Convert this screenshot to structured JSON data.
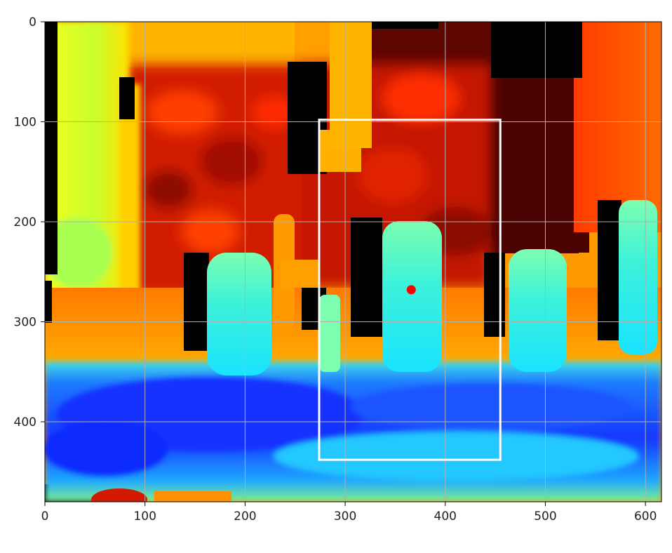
{
  "chart_data": {
    "type": "heatmap",
    "image_kind": "depth map (jet colormap)",
    "colormap": "jet",
    "xlim": [
      0,
      616
    ],
    "ylim": [
      480,
      0
    ],
    "grid": true,
    "x_ticks": [
      0,
      100,
      200,
      300,
      400,
      500,
      600
    ],
    "y_ticks": [
      0,
      100,
      200,
      300,
      400
    ],
    "bounding_box": {
      "x_min": 274,
      "y_min": 98,
      "x_max": 455,
      "y_max": 438,
      "color": "#ffffff"
    },
    "marker": {
      "x": 366,
      "y": 268,
      "color": "#ff0000"
    },
    "colors": {
      "invalid": "#000000",
      "near": "#1a2cff",
      "mid": "#22e6e6",
      "far": "#c81400",
      "farthest": "#5a0500"
    }
  }
}
